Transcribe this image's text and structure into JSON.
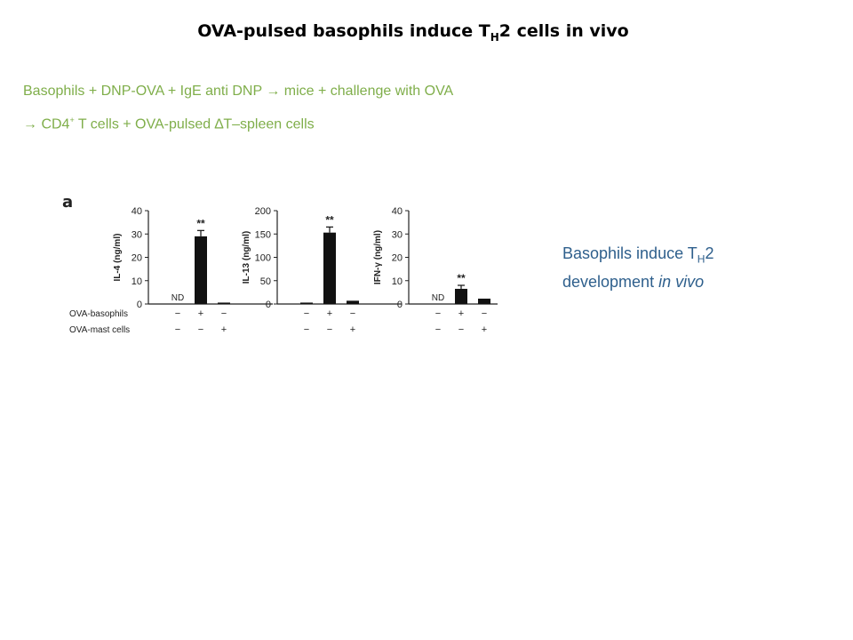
{
  "slide": {
    "title_pre": "OVA-pulsed basophils induce T",
    "title_sub": "H",
    "title_post": "2 cells in vivo",
    "line1": "Basophils + DNP-OVA + IgE anti DNP → mice + challenge with OVA",
    "line2_pre": "→ CD4",
    "line2_sup": "+",
    "line2_post": " T cells + OVA-pulsed ∆T–spleen cells",
    "panel_label": "a",
    "caption_pre": "Basophils induce T",
    "caption_sub": "H",
    "caption_mid": "2 development ",
    "caption_italic": "in vivo"
  },
  "colors": {
    "accent_text": "#7fae4a",
    "caption_text": "#2e5f8c",
    "bars": "#111111"
  },
  "chart_data": [
    {
      "type": "bar",
      "categories": [
        "1",
        "2",
        "3"
      ],
      "values": [
        0,
        29,
        0.6
      ],
      "errors": [
        0,
        2.5,
        0
      ],
      "annotations": [
        "ND",
        "**",
        ""
      ],
      "ylabel": "IL-4 (ng/ml)",
      "ylim": [
        0,
        40
      ],
      "yticks": [
        0,
        10,
        20,
        30,
        40
      ],
      "conditions": [
        {
          "label": "OVA-basophils",
          "signs": [
            "−",
            "+",
            "−"
          ]
        },
        {
          "label": "OVA-mast cells",
          "signs": [
            "−",
            "−",
            "+"
          ]
        }
      ]
    },
    {
      "type": "bar",
      "categories": [
        "1",
        "2",
        "3"
      ],
      "values": [
        3,
        153,
        7
      ],
      "errors": [
        0,
        12,
        0
      ],
      "annotations": [
        "",
        "**",
        ""
      ],
      "ylabel": "IL-13 (ng/ml)",
      "ylim": [
        0,
        200
      ],
      "yticks": [
        0,
        50,
        100,
        150,
        200
      ],
      "conditions": [
        {
          "label": "",
          "signs": [
            "−",
            "+",
            "−"
          ]
        },
        {
          "label": "",
          "signs": [
            "−",
            "−",
            "+"
          ]
        }
      ]
    },
    {
      "type": "bar",
      "categories": [
        "1",
        "2",
        "3"
      ],
      "values": [
        0,
        6.5,
        2.3
      ],
      "errors": [
        0,
        1.5,
        0
      ],
      "annotations": [
        "ND",
        "**",
        ""
      ],
      "ylabel": "IFN-γ (ng/ml)",
      "ylim": [
        0,
        40
      ],
      "yticks": [
        0,
        10,
        20,
        30,
        40
      ],
      "conditions": [
        {
          "label": "",
          "signs": [
            "−",
            "+",
            "−"
          ]
        },
        {
          "label": "",
          "signs": [
            "−",
            "−",
            "+"
          ]
        }
      ]
    }
  ]
}
